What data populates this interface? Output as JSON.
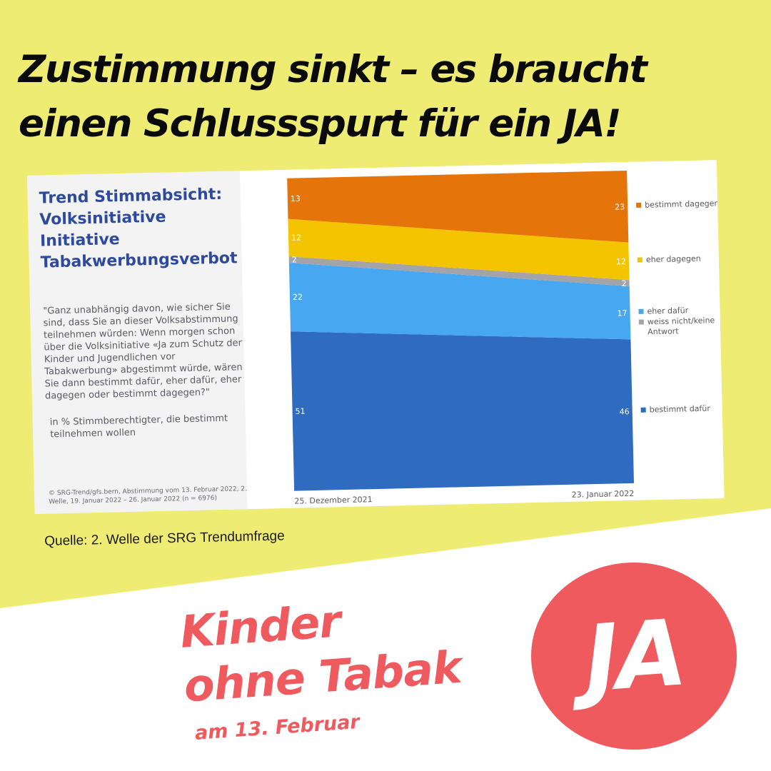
{
  "headline": {
    "line1": "Zustimmung sinkt – es braucht",
    "line2": "einen Schlussspurt für ein JA!"
  },
  "card": {
    "title_lines": [
      "Trend Stimmabsicht:",
      "Volksinitiative",
      "Initiative",
      "Tabakwerbungsverbot"
    ],
    "question": "\"Ganz unabhängig davon, wie sicher Sie sind, dass Sie an dieser Volksabstimmung teilnehmen würden: Wenn morgen schon über die Volksinitiative «Ja zum Schutz der Kinder und Jugendlichen vor Tabakwerbung» abgestimmt würde, wären Sie dann bestimmt dafür, eher dafür, eher dagegen oder bestimmt dagegen?\"",
    "unit": "in % Stimmberechtigter, die bestimmt teilnehmen wollen",
    "footnote": "© SRG-Trend/gfs.bern, Abstimmung vom 13. Februar 2022, 2. Welle, 19. Januar 2022 – 26. Januar 2022 (n = 6976)"
  },
  "chart_data": {
    "type": "area",
    "stacked": true,
    "x": [
      "25. Dezember 2021",
      "23. Januar 2022"
    ],
    "series": [
      {
        "name": "bestimmt dafür",
        "values": [
          51,
          46
        ],
        "color": "#2f6bbf"
      },
      {
        "name": "eher dafür",
        "values": [
          22,
          17
        ],
        "color": "#47a7f0"
      },
      {
        "name": "weiss nicht/keine Antwort",
        "values": [
          2,
          2
        ],
        "color": "#a4a4a8"
      },
      {
        "name": "eher dagegen",
        "values": [
          12,
          12
        ],
        "color": "#f5c400"
      },
      {
        "name": "bestimmt dagegen",
        "values": [
          13,
          23
        ],
        "color": "#e5740b"
      }
    ],
    "ylim": [
      0,
      100
    ],
    "legend": "right",
    "grid": false
  },
  "source": "Quelle: 2. Welle der SRG Trendumfrage",
  "slogan": {
    "line1": "Kinder",
    "line2": "ohne Tabak",
    "date": "am 13. Februar"
  },
  "badge": "JA",
  "colors": {
    "yellow": "#efec74",
    "accent_red": "#ef5a5f",
    "title_blue": "#2e4a9c"
  }
}
